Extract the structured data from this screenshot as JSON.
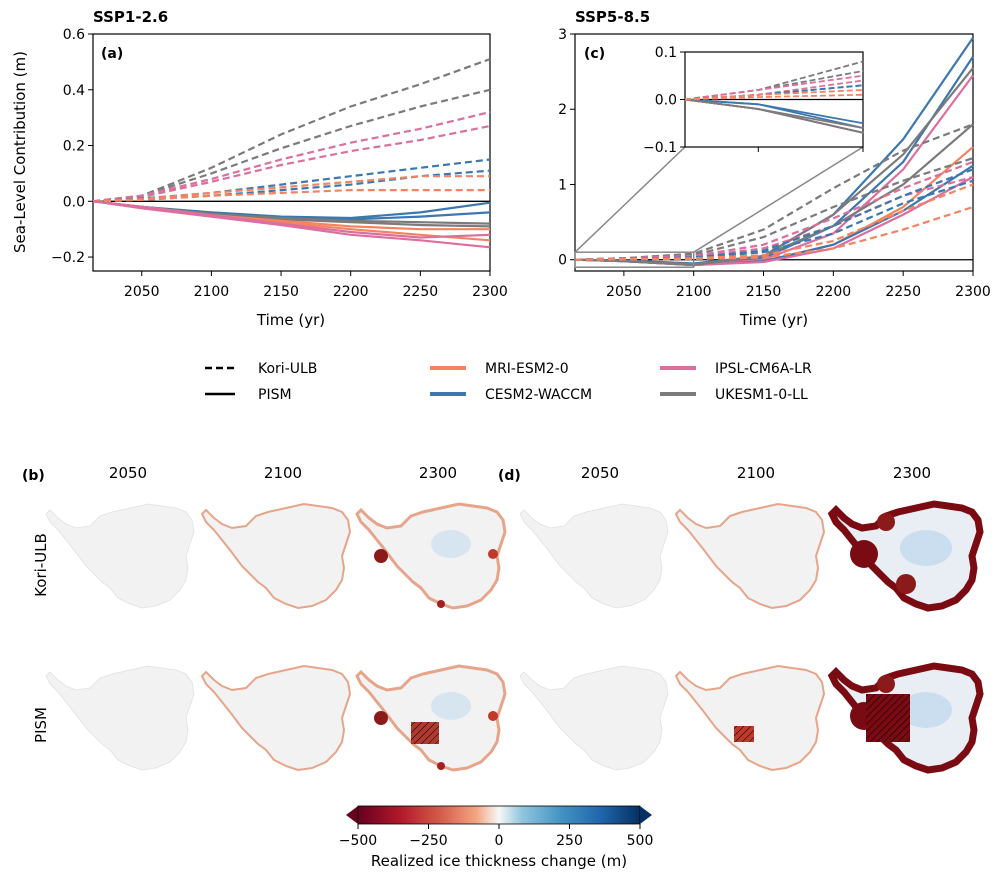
{
  "chart_data": [
    {
      "type": "line",
      "title": "SSP1-2.6",
      "panel_label": "(a)",
      "xlabel": "Time (yr)",
      "ylabel": "Sea-Level Contribution (m)",
      "xlim": [
        2015,
        2300
      ],
      "ylim": [
        -0.25,
        0.6
      ],
      "xticks": [
        2050,
        2100,
        2150,
        2200,
        2250,
        2300
      ],
      "yticks": [
        -0.2,
        0.0,
        0.2,
        0.4,
        0.6
      ],
      "ytick_labels": [
        "−0.2",
        "0.0",
        "0.2",
        "0.4",
        "0.6"
      ],
      "zero_line": true,
      "x": [
        2015,
        2050,
        2100,
        2150,
        2200,
        2250,
        2300
      ],
      "series": [
        {
          "name": "UKESM1-0-LL",
          "model": "Kori-ULB",
          "style": "dashed",
          "values": [
            0,
            0.02,
            0.12,
            0.24,
            0.34,
            0.42,
            0.51
          ]
        },
        {
          "name": "UKESM1-0-LL",
          "model": "Kori-ULB",
          "style": "dashed",
          "values": [
            0,
            0.02,
            0.1,
            0.19,
            0.27,
            0.34,
            0.4
          ]
        },
        {
          "name": "IPSL-CM6A-LR",
          "model": "Kori-ULB",
          "style": "dashed",
          "values": [
            0,
            0.02,
            0.08,
            0.15,
            0.21,
            0.26,
            0.32
          ]
        },
        {
          "name": "IPSL-CM6A-LR",
          "model": "Kori-ULB",
          "style": "dashed",
          "values": [
            0,
            0.015,
            0.07,
            0.13,
            0.18,
            0.22,
            0.27
          ]
        },
        {
          "name": "CESM2-WACCM",
          "model": "Kori-ULB",
          "style": "dashed",
          "values": [
            0,
            0.01,
            0.03,
            0.06,
            0.09,
            0.12,
            0.15
          ]
        },
        {
          "name": "CESM2-WACCM",
          "model": "Kori-ULB",
          "style": "dashed",
          "values": [
            0,
            0.005,
            0.02,
            0.04,
            0.06,
            0.09,
            0.11
          ]
        },
        {
          "name": "MRI-ESM2-0",
          "model": "Kori-ULB",
          "style": "dashed",
          "values": [
            0,
            0.008,
            0.03,
            0.05,
            0.07,
            0.09,
            0.09
          ]
        },
        {
          "name": "MRI-ESM2-0",
          "model": "Kori-ULB",
          "style": "dashed",
          "values": [
            0,
            0.005,
            0.02,
            0.03,
            0.04,
            0.04,
            0.04
          ]
        },
        {
          "name": "CESM2-WACCM",
          "model": "PISM",
          "style": "solid",
          "values": [
            0,
            -0.02,
            -0.04,
            -0.055,
            -0.06,
            -0.04,
            -0.005
          ]
        },
        {
          "name": "CESM2-WACCM",
          "model": "PISM",
          "style": "solid",
          "values": [
            0,
            -0.02,
            -0.045,
            -0.06,
            -0.065,
            -0.055,
            -0.04
          ]
        },
        {
          "name": "UKESM1-0-LL",
          "model": "PISM",
          "style": "solid",
          "values": [
            0,
            -0.02,
            -0.045,
            -0.06,
            -0.07,
            -0.075,
            -0.08
          ]
        },
        {
          "name": "UKESM1-0-LL",
          "model": "PISM",
          "style": "solid",
          "values": [
            0,
            -0.02,
            -0.045,
            -0.065,
            -0.075,
            -0.085,
            -0.09
          ]
        },
        {
          "name": "MRI-ESM2-0",
          "model": "PISM",
          "style": "solid",
          "values": [
            0,
            -0.02,
            -0.05,
            -0.07,
            -0.09,
            -0.1,
            -0.1
          ]
        },
        {
          "name": "MRI-ESM2-0",
          "model": "PISM",
          "style": "solid",
          "values": [
            0,
            -0.02,
            -0.05,
            -0.075,
            -0.1,
            -0.12,
            -0.14
          ]
        },
        {
          "name": "IPSL-CM6A-LR",
          "model": "PISM",
          "style": "solid",
          "values": [
            0,
            -0.02,
            -0.05,
            -0.08,
            -0.11,
            -0.13,
            -0.12
          ]
        },
        {
          "name": "IPSL-CM6A-LR",
          "model": "PISM",
          "style": "solid",
          "values": [
            0,
            -0.025,
            -0.055,
            -0.085,
            -0.12,
            -0.14,
            -0.165
          ]
        }
      ]
    },
    {
      "type": "line",
      "title": "SSP5-8.5",
      "panel_label": "(c)",
      "xlabel": "Time (yr)",
      "ylabel": "",
      "xlim": [
        2015,
        2300
      ],
      "ylim": [
        -0.15,
        3.0
      ],
      "xticks": [
        2050,
        2100,
        2150,
        2200,
        2250,
        2300
      ],
      "yticks": [
        0,
        1,
        2,
        3
      ],
      "ytick_labels": [
        "0",
        "1",
        "2",
        "3"
      ],
      "zero_line": true,
      "x": [
        2015,
        2050,
        2100,
        2150,
        2200,
        2250,
        2300
      ],
      "series": [
        {
          "name": "CESM2-WACCM",
          "model": "PISM",
          "style": "solid",
          "values": [
            0,
            -0.01,
            -0.05,
            0.05,
            0.6,
            1.6,
            2.95
          ]
        },
        {
          "name": "CESM2-WACCM",
          "model": "PISM",
          "style": "solid",
          "values": [
            0,
            -0.01,
            -0.06,
            0.02,
            0.45,
            1.3,
            2.7
          ]
        },
        {
          "name": "UKESM1-0-LL",
          "model": "PISM",
          "style": "solid",
          "values": [
            0,
            -0.02,
            -0.06,
            0.05,
            0.6,
            1.4,
            2.55
          ]
        },
        {
          "name": "IPSL-CM6A-LR",
          "model": "PISM",
          "style": "solid",
          "values": [
            0,
            -0.02,
            -0.07,
            0.0,
            0.35,
            1.2,
            2.45
          ]
        },
        {
          "name": "MRI-ESM2-0",
          "model": "PISM",
          "style": "solid",
          "values": [
            0,
            -0.02,
            -0.07,
            -0.02,
            0.2,
            0.7,
            1.5
          ]
        },
        {
          "name": "CESM2-WACCM",
          "model": "PISM",
          "style": "solid",
          "values": [
            0,
            -0.02,
            -0.07,
            -0.02,
            0.2,
            0.65,
            1.25
          ]
        },
        {
          "name": "IPSL-CM6A-LR",
          "model": "PISM",
          "style": "solid",
          "values": [
            0,
            -0.02,
            -0.07,
            -0.03,
            0.15,
            0.6,
            1.1
          ]
        },
        {
          "name": "UKESM1-0-LL",
          "model": "PISM",
          "style": "solid",
          "values": [
            0,
            -0.02,
            -0.07,
            0.05,
            0.45,
            1.0,
            1.8
          ]
        },
        {
          "name": "UKESM1-0-LL",
          "model": "Kori-ULB",
          "style": "dashed",
          "values": [
            0,
            0.02,
            0.08,
            0.4,
            0.95,
            1.45,
            1.8
          ]
        },
        {
          "name": "UKESM1-0-LL",
          "model": "Kori-ULB",
          "style": "dashed",
          "values": [
            0,
            0.02,
            0.06,
            0.3,
            0.7,
            1.05,
            1.35
          ]
        },
        {
          "name": "IPSL-CM6A-LR",
          "model": "Kori-ULB",
          "style": "dashed",
          "values": [
            0,
            0.02,
            0.05,
            0.2,
            0.55,
            0.95,
            1.3
          ]
        },
        {
          "name": "IPSL-CM6A-LR",
          "model": "Kori-ULB",
          "style": "dashed",
          "values": [
            0,
            0.01,
            0.04,
            0.15,
            0.45,
            0.85,
            1.1
          ]
        },
        {
          "name": "CESM2-WACCM",
          "model": "Kori-ULB",
          "style": "dashed",
          "values": [
            0,
            0.01,
            0.03,
            0.12,
            0.45,
            0.85,
            1.2
          ]
        },
        {
          "name": "CESM2-WACCM",
          "model": "Kori-ULB",
          "style": "dashed",
          "values": [
            0,
            0.01,
            0.03,
            0.1,
            0.35,
            0.75,
            1.05
          ]
        },
        {
          "name": "MRI-ESM2-0",
          "model": "Kori-ULB",
          "style": "dashed",
          "values": [
            0,
            0.01,
            0.02,
            0.06,
            0.25,
            0.65,
            1.0
          ]
        },
        {
          "name": "MRI-ESM2-0",
          "model": "Kori-ULB",
          "style": "dashed",
          "values": [
            0,
            0.005,
            0.01,
            0.03,
            0.15,
            0.4,
            0.7
          ]
        }
      ],
      "inset": {
        "xlim": [
          2015,
          2100
        ],
        "ylim": [
          -0.1,
          0.1
        ],
        "yticks": [
          -0.1,
          0.0,
          0.1
        ],
        "ytick_labels": [
          "−0.1",
          "0.0",
          "0.1"
        ]
      }
    }
  ],
  "legend": {
    "styles": [
      {
        "label": "Kori-ULB",
        "style": "dashed"
      },
      {
        "label": "PISM",
        "style": "solid"
      }
    ],
    "models": [
      {
        "label": "MRI-ESM2-0",
        "color": "#f4845f"
      },
      {
        "label": "CESM2-WACCM",
        "color": "#3c78b0"
      },
      {
        "label": "IPSL-CM6A-LR",
        "color": "#dc6f9e"
      },
      {
        "label": "UKESM1-0-LL",
        "color": "#7b7b7b"
      }
    ]
  },
  "maps": {
    "panel_b": "(b)",
    "panel_d": "(d)",
    "years": [
      "2050",
      "2100",
      "2300"
    ],
    "rows": [
      "Kori-ULB",
      "PISM"
    ]
  },
  "colorbar": {
    "ticks": [
      "−500",
      "−250",
      "0",
      "250",
      "500"
    ],
    "label": "Realized ice thickness change (m)"
  },
  "colors": {
    "MRI-ESM2-0": "#f4845f",
    "CESM2-WACCM": "#3c78b0",
    "IPSL-CM6A-LR": "#dc6f9e",
    "UKESM1-0-LL": "#7b7b7b"
  }
}
